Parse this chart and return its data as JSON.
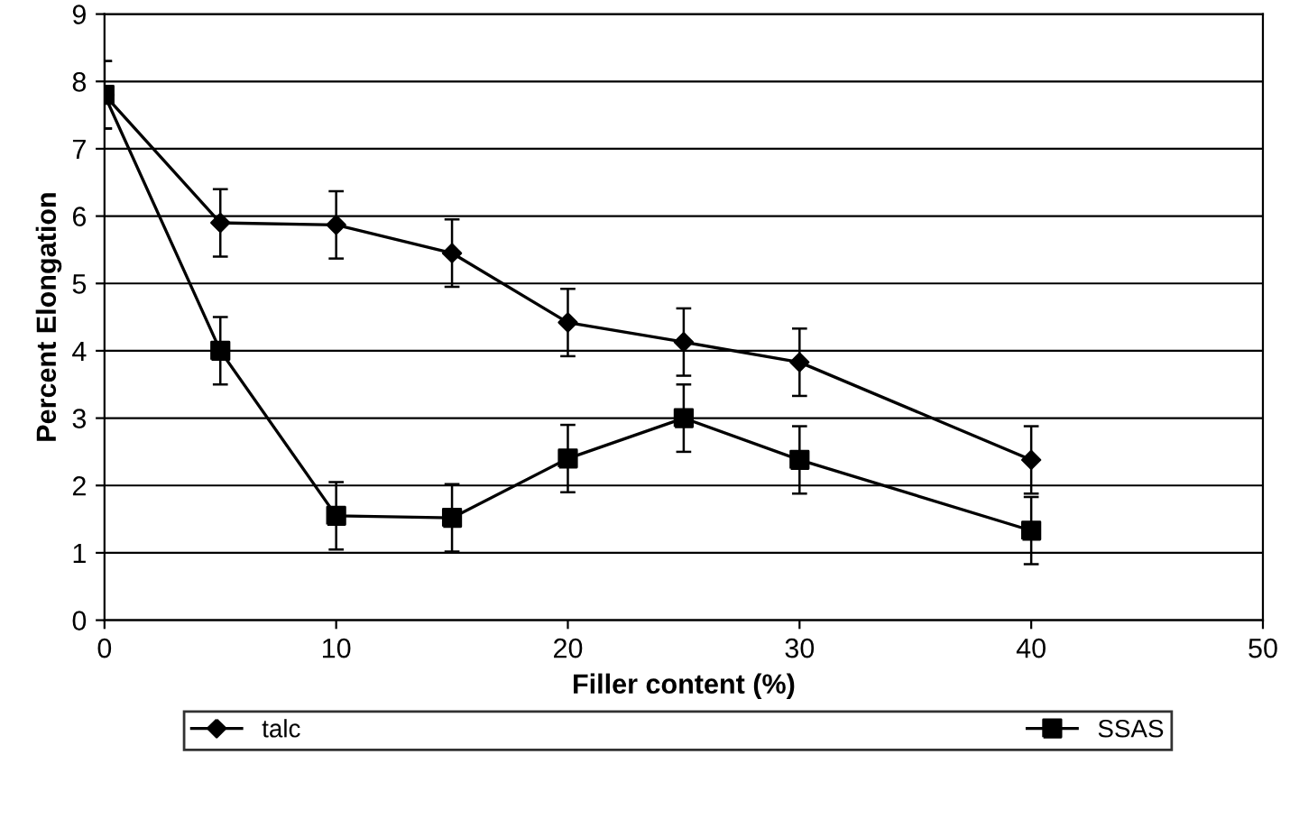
{
  "chart_data": {
    "type": "line",
    "xlabel": "Filler content (%)",
    "ylabel": "Percent Elongation",
    "xlim": [
      0,
      50
    ],
    "xticks": [
      0,
      10,
      20,
      30,
      40,
      50
    ],
    "ylim": [
      0,
      9
    ],
    "yticks": [
      0,
      1,
      2,
      3,
      4,
      5,
      6,
      7,
      8,
      9
    ],
    "grid": "y",
    "legend": "bottom",
    "line_style": "solid",
    "series": [
      {
        "name": "talc",
        "color": "#000000",
        "marker": "diamond",
        "x": [
          0,
          5,
          10,
          15,
          20,
          25,
          30,
          40
        ],
        "values": [
          7.8,
          5.9,
          5.87,
          5.45,
          4.42,
          4.13,
          3.83,
          2.38
        ],
        "errors": [
          0.5,
          0.5,
          0.5,
          0.5,
          0.5,
          0.5,
          0.5,
          0.5
        ]
      },
      {
        "name": "SSAS",
        "color": "#000000",
        "marker": "square",
        "x": [
          0,
          5,
          10,
          15,
          20,
          25,
          30,
          40
        ],
        "values": [
          7.8,
          4.0,
          1.55,
          1.52,
          2.4,
          3.0,
          2.38,
          1.33
        ],
        "errors": [
          0.5,
          0.5,
          0.5,
          0.5,
          0.5,
          0.5,
          0.5,
          0.5
        ]
      }
    ]
  }
}
